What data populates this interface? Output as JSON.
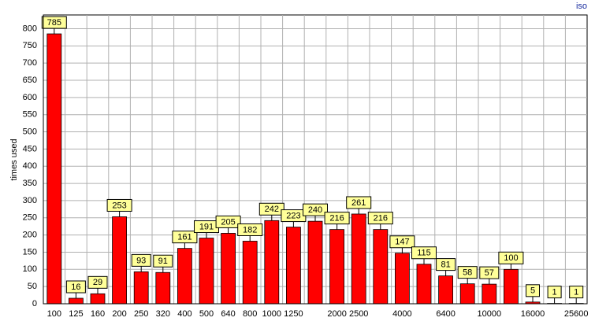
{
  "chart_data": {
    "type": "bar",
    "corner_label": "iso",
    "y_label": "times used",
    "categories": [
      "100",
      "125",
      "160",
      "200",
      "250",
      "320",
      "400",
      "500",
      "640",
      "800",
      "1000",
      "1250",
      null,
      "2000",
      "2500",
      null,
      "4000",
      null,
      "6400",
      null,
      "10000",
      null,
      "16000",
      null,
      "25600"
    ],
    "values": [
      785,
      16,
      29,
      253,
      93,
      91,
      161,
      191,
      205,
      182,
      242,
      223,
      240,
      216,
      261,
      216,
      147,
      115,
      81,
      58,
      57,
      100,
      5,
      1,
      1
    ],
    "color": "#ff0000",
    "label_color": "#ffff99",
    "ylim": [
      0,
      840
    ],
    "yticks": [
      0,
      50,
      100,
      150,
      200,
      250,
      300,
      350,
      400,
      450,
      500,
      550,
      600,
      650,
      700,
      750,
      800
    ],
    "grid": true
  }
}
